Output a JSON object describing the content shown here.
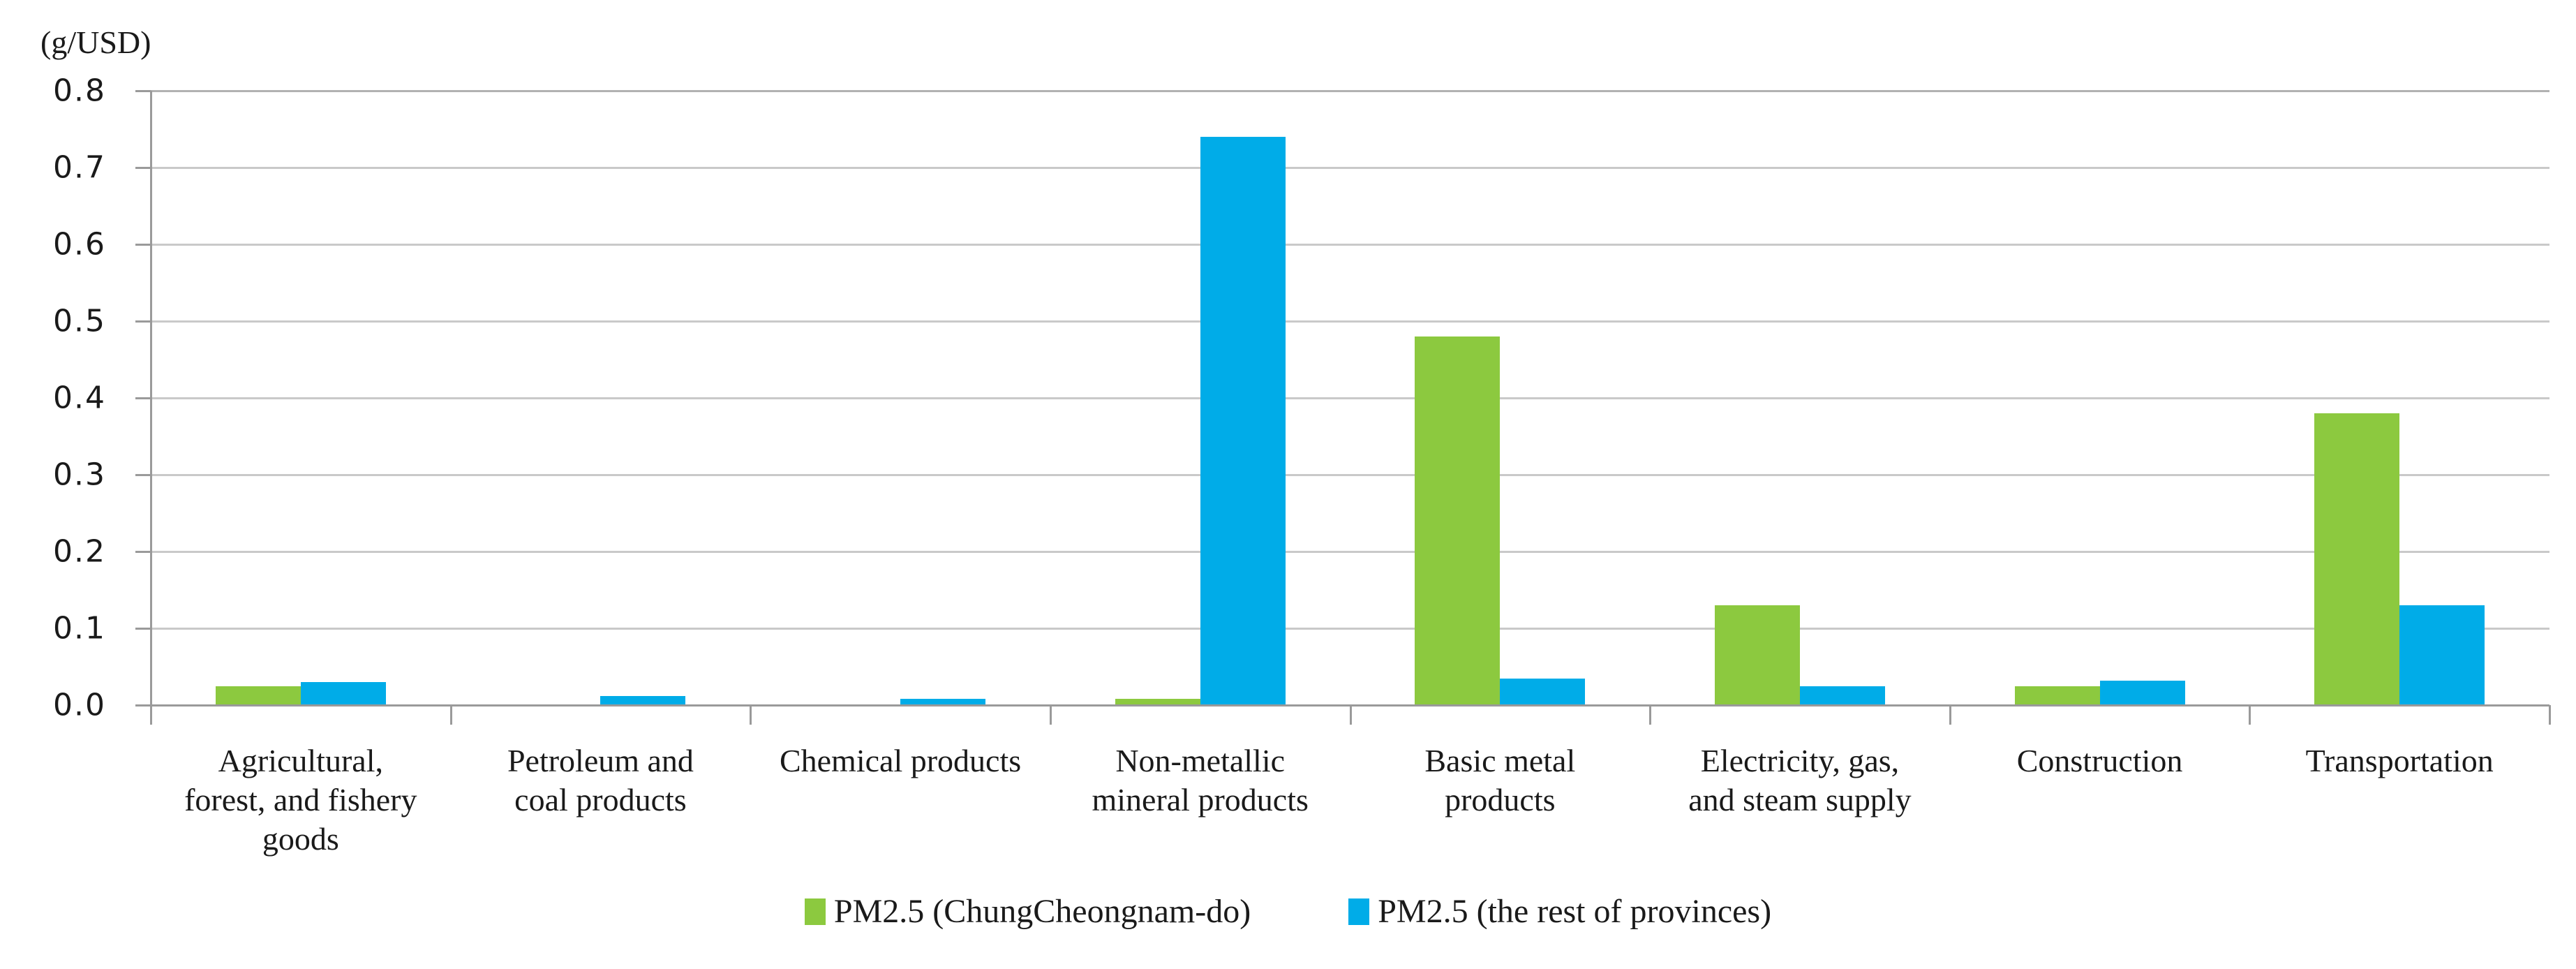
{
  "chart_data": {
    "type": "bar",
    "title": "",
    "unit_label": "(g/USD)",
    "xlabel": "",
    "ylabel": "(g/USD)",
    "ylim": [
      0.0,
      0.8
    ],
    "ytick_step": 0.1,
    "yticks": [
      "0.0",
      "0.1",
      "0.2",
      "0.3",
      "0.4",
      "0.5",
      "0.6",
      "0.7",
      "0.8"
    ],
    "grid": true,
    "legend_position": "bottom",
    "categories": [
      "Agricultural, forest, and fishery goods",
      "Petroleum and coal products",
      "Chemical products",
      "Non-metallic mineral products",
      "Basic metal products",
      "Electricity, gas, and steam supply",
      "Construction",
      "Transportation"
    ],
    "category_label_lines": [
      [
        "Agricultural,",
        "forest, and fishery",
        "goods"
      ],
      [
        "Petroleum and",
        "coal products"
      ],
      [
        "Chemical products"
      ],
      [
        "Non-metallic",
        "mineral products"
      ],
      [
        "Basic metal",
        "products"
      ],
      [
        "Electricity, gas,",
        "and steam supply"
      ],
      [
        "Construction"
      ],
      [
        "Transportation"
      ]
    ],
    "series": [
      {
        "name": "PM2.5 (ChungCheongnam-do)",
        "color": "#8CC93F",
        "values": [
          0.025,
          0.0,
          0.0,
          0.008,
          0.48,
          0.13,
          0.025,
          0.38
        ]
      },
      {
        "name": "PM2.5 (the rest of provinces)",
        "color": "#00ACE8",
        "values": [
          0.03,
          0.012,
          0.008,
          0.74,
          0.035,
          0.025,
          0.032,
          0.13
        ]
      }
    ]
  }
}
